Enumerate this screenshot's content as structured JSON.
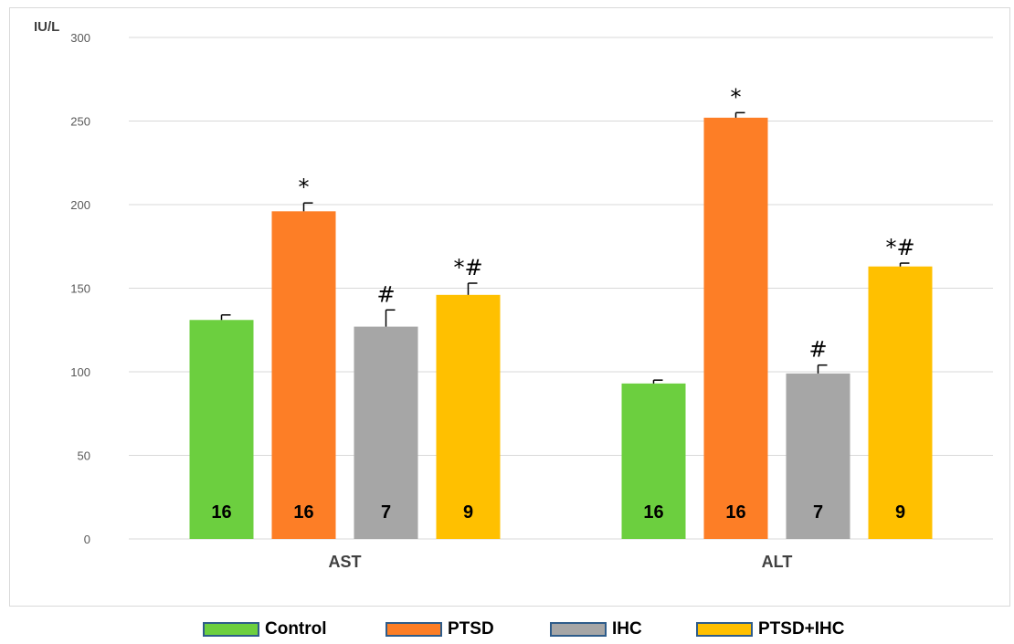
{
  "chart_data": {
    "type": "bar",
    "ylabel": "IU/L",
    "ylim": [
      0,
      300
    ],
    "yticks": [
      0,
      50,
      100,
      150,
      200,
      250,
      300
    ],
    "categories": [
      "AST",
      "ALT"
    ],
    "grid": true,
    "legend_position": "bottom",
    "series": [
      {
        "name": "Control",
        "color": "#6ccf3f",
        "values": [
          131,
          93
        ],
        "errors": [
          3,
          2
        ],
        "n": [
          "16",
          "16"
        ],
        "marks": [
          "",
          ""
        ]
      },
      {
        "name": "PTSD",
        "color": "#fd7e26",
        "values": [
          196,
          252
        ],
        "errors": [
          5,
          3
        ],
        "n": [
          "16",
          "16"
        ],
        "marks": [
          "*",
          "*"
        ]
      },
      {
        "name": "IHC",
        "color": "#a6a6a6",
        "values": [
          127,
          99
        ],
        "errors": [
          10,
          5
        ],
        "n": [
          "7",
          "7"
        ],
        "marks": [
          "#",
          "#"
        ]
      },
      {
        "name": "PTSD+IHC",
        "color": "#ffc000",
        "values": [
          146,
          163
        ],
        "errors": [
          7,
          2
        ],
        "n": [
          "9",
          "9"
        ],
        "marks": [
          "*#",
          "*#"
        ]
      }
    ]
  }
}
